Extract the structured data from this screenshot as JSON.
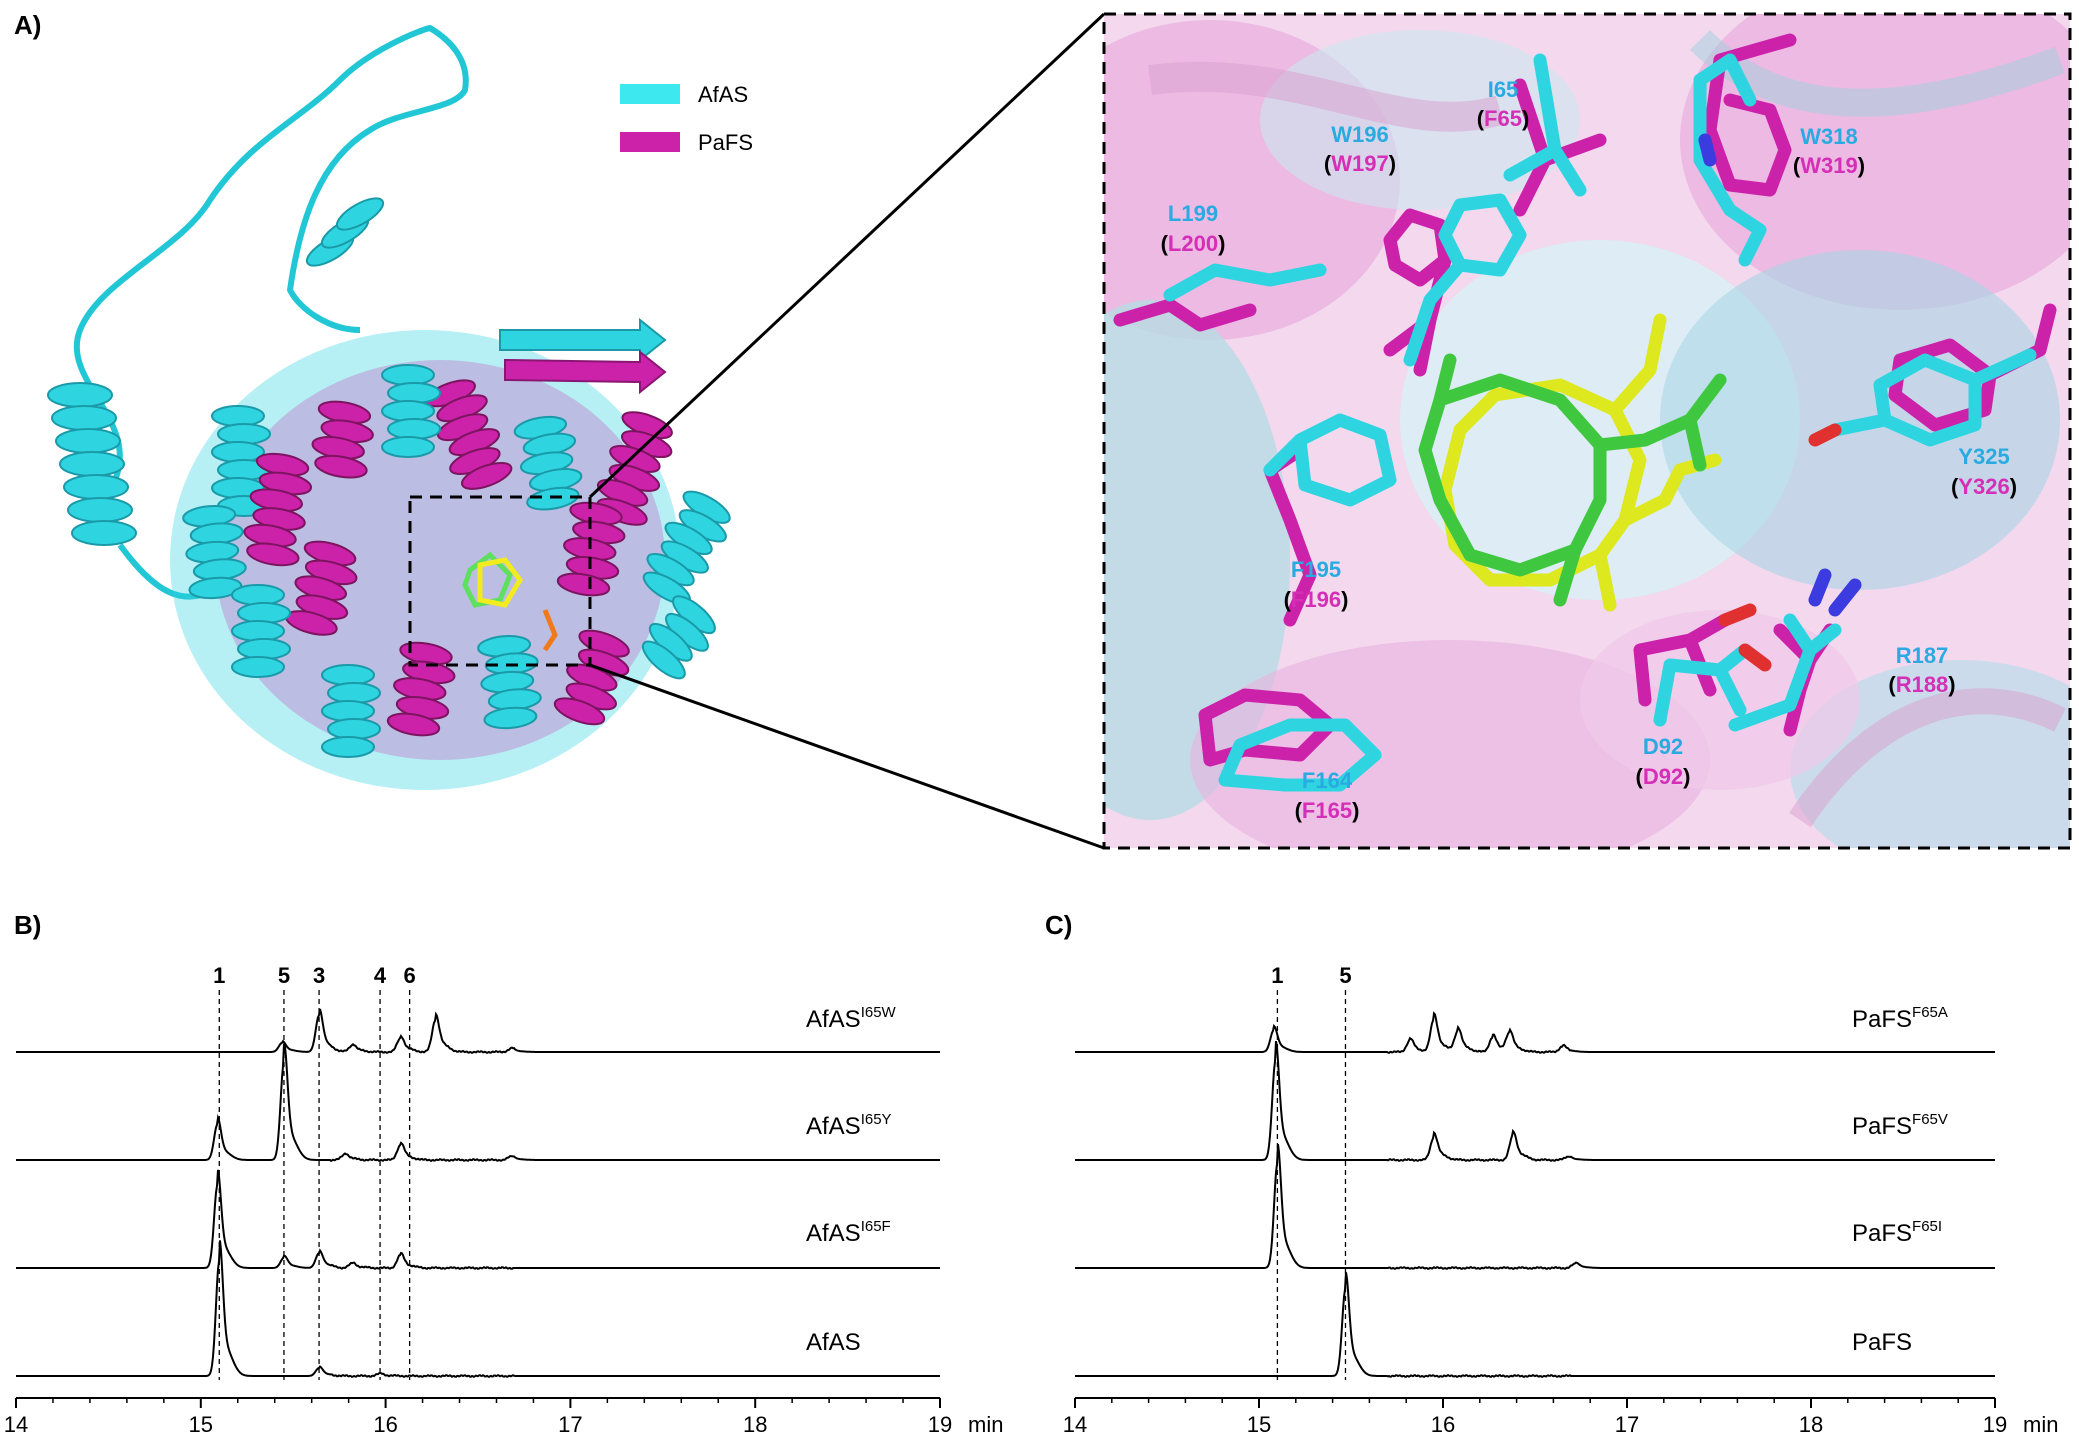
{
  "panels": {
    "a": {
      "letter": "A)",
      "legend": [
        {
          "label": "AfAS",
          "color": "#3DE8EE"
        },
        {
          "label": "PaFS",
          "color": "#CC22AA"
        }
      ],
      "residues": [
        {
          "af": "I65",
          "pa": "F65"
        },
        {
          "af": "W196",
          "pa": "W197"
        },
        {
          "af": "W318",
          "pa": "W319"
        },
        {
          "af": "L199",
          "pa": "L200"
        },
        {
          "af": "Y325",
          "pa": "Y326"
        },
        {
          "af": "F195",
          "pa": "F196"
        },
        {
          "af": "R187",
          "pa": "R188"
        },
        {
          "af": "D92",
          "pa": "D92"
        },
        {
          "af": "F164",
          "pa": "F165"
        }
      ],
      "colors": {
        "afas": "#29ABE2",
        "pafs": "#D42FB6"
      }
    },
    "b": {
      "letter": "B)",
      "x_axis": {
        "ticks": [
          "14",
          "15",
          "16",
          "17",
          "18",
          "19"
        ],
        "unit": "min"
      },
      "peak_labels": [
        {
          "text": "1",
          "x": 15.1
        },
        {
          "text": "5",
          "x": 15.45
        },
        {
          "text": "3",
          "x": 15.64
        },
        {
          "text": "4",
          "x": 15.97
        },
        {
          "text": "6",
          "x": 16.13
        }
      ],
      "traces": [
        {
          "base": "AfAS",
          "sup": "I65W"
        },
        {
          "base": "AfAS",
          "sup": "I65Y"
        },
        {
          "base": "AfAS",
          "sup": "I65F"
        },
        {
          "base": "AfAS",
          "sup": ""
        }
      ]
    },
    "c": {
      "letter": "C)",
      "x_axis": {
        "ticks": [
          "14",
          "15",
          "16",
          "17",
          "18",
          "19"
        ],
        "unit": "min"
      },
      "peak_labels": [
        {
          "text": "1",
          "x": 15.1
        },
        {
          "text": "5",
          "x": 15.47
        }
      ],
      "traces": [
        {
          "base": "PaFS",
          "sup": "F65A"
        },
        {
          "base": "PaFS",
          "sup": "F65V"
        },
        {
          "base": "PaFS",
          "sup": "F65I"
        },
        {
          "base": "PaFS",
          "sup": ""
        }
      ]
    }
  },
  "chart_data": [
    {
      "type": "line",
      "panel": "B",
      "xlabel": "min",
      "xlim": [
        14,
        19
      ],
      "series": [
        {
          "name": "AfAS I65W",
          "peaks": [
            [
              15.44,
              0.08
            ],
            [
              15.64,
              0.32
            ],
            [
              15.82,
              0.06
            ],
            [
              16.08,
              0.12
            ],
            [
              16.27,
              0.28
            ],
            [
              16.68,
              0.03
            ]
          ]
        },
        {
          "name": "AfAS I65Y",
          "peaks": [
            [
              15.09,
              0.31
            ],
            [
              15.45,
              0.85
            ],
            [
              15.78,
              0.05
            ],
            [
              16.08,
              0.13
            ],
            [
              16.68,
              0.03
            ]
          ]
        },
        {
          "name": "AfAS I65F",
          "peaks": [
            [
              15.09,
              0.72
            ],
            [
              15.45,
              0.09
            ],
            [
              15.64,
              0.13
            ],
            [
              15.82,
              0.04
            ],
            [
              16.08,
              0.11
            ]
          ]
        },
        {
          "name": "AfAS",
          "peaks": [
            [
              15.1,
              1.0
            ],
            [
              15.64,
              0.07
            ],
            [
              15.97,
              0.02
            ]
          ]
        }
      ]
    },
    {
      "type": "line",
      "panel": "C",
      "xlabel": "min",
      "xlim": [
        14,
        19
      ],
      "series": [
        {
          "name": "PaFS F65A",
          "peaks": [
            [
              15.08,
              0.19
            ],
            [
              15.82,
              0.1
            ],
            [
              15.95,
              0.28
            ],
            [
              16.08,
              0.18
            ],
            [
              16.27,
              0.13
            ],
            [
              16.36,
              0.16
            ],
            [
              16.65,
              0.05
            ]
          ]
        },
        {
          "name": "PaFS F65V",
          "peaks": [
            [
              15.09,
              0.87
            ],
            [
              15.95,
              0.2
            ],
            [
              16.38,
              0.21
            ],
            [
              16.68,
              0.03
            ]
          ]
        },
        {
          "name": "PaFS F65I",
          "peaks": [
            [
              15.1,
              0.91
            ],
            [
              16.72,
              0.04
            ]
          ]
        },
        {
          "name": "PaFS",
          "peaks": [
            [
              15.47,
              0.76
            ]
          ]
        }
      ]
    }
  ]
}
